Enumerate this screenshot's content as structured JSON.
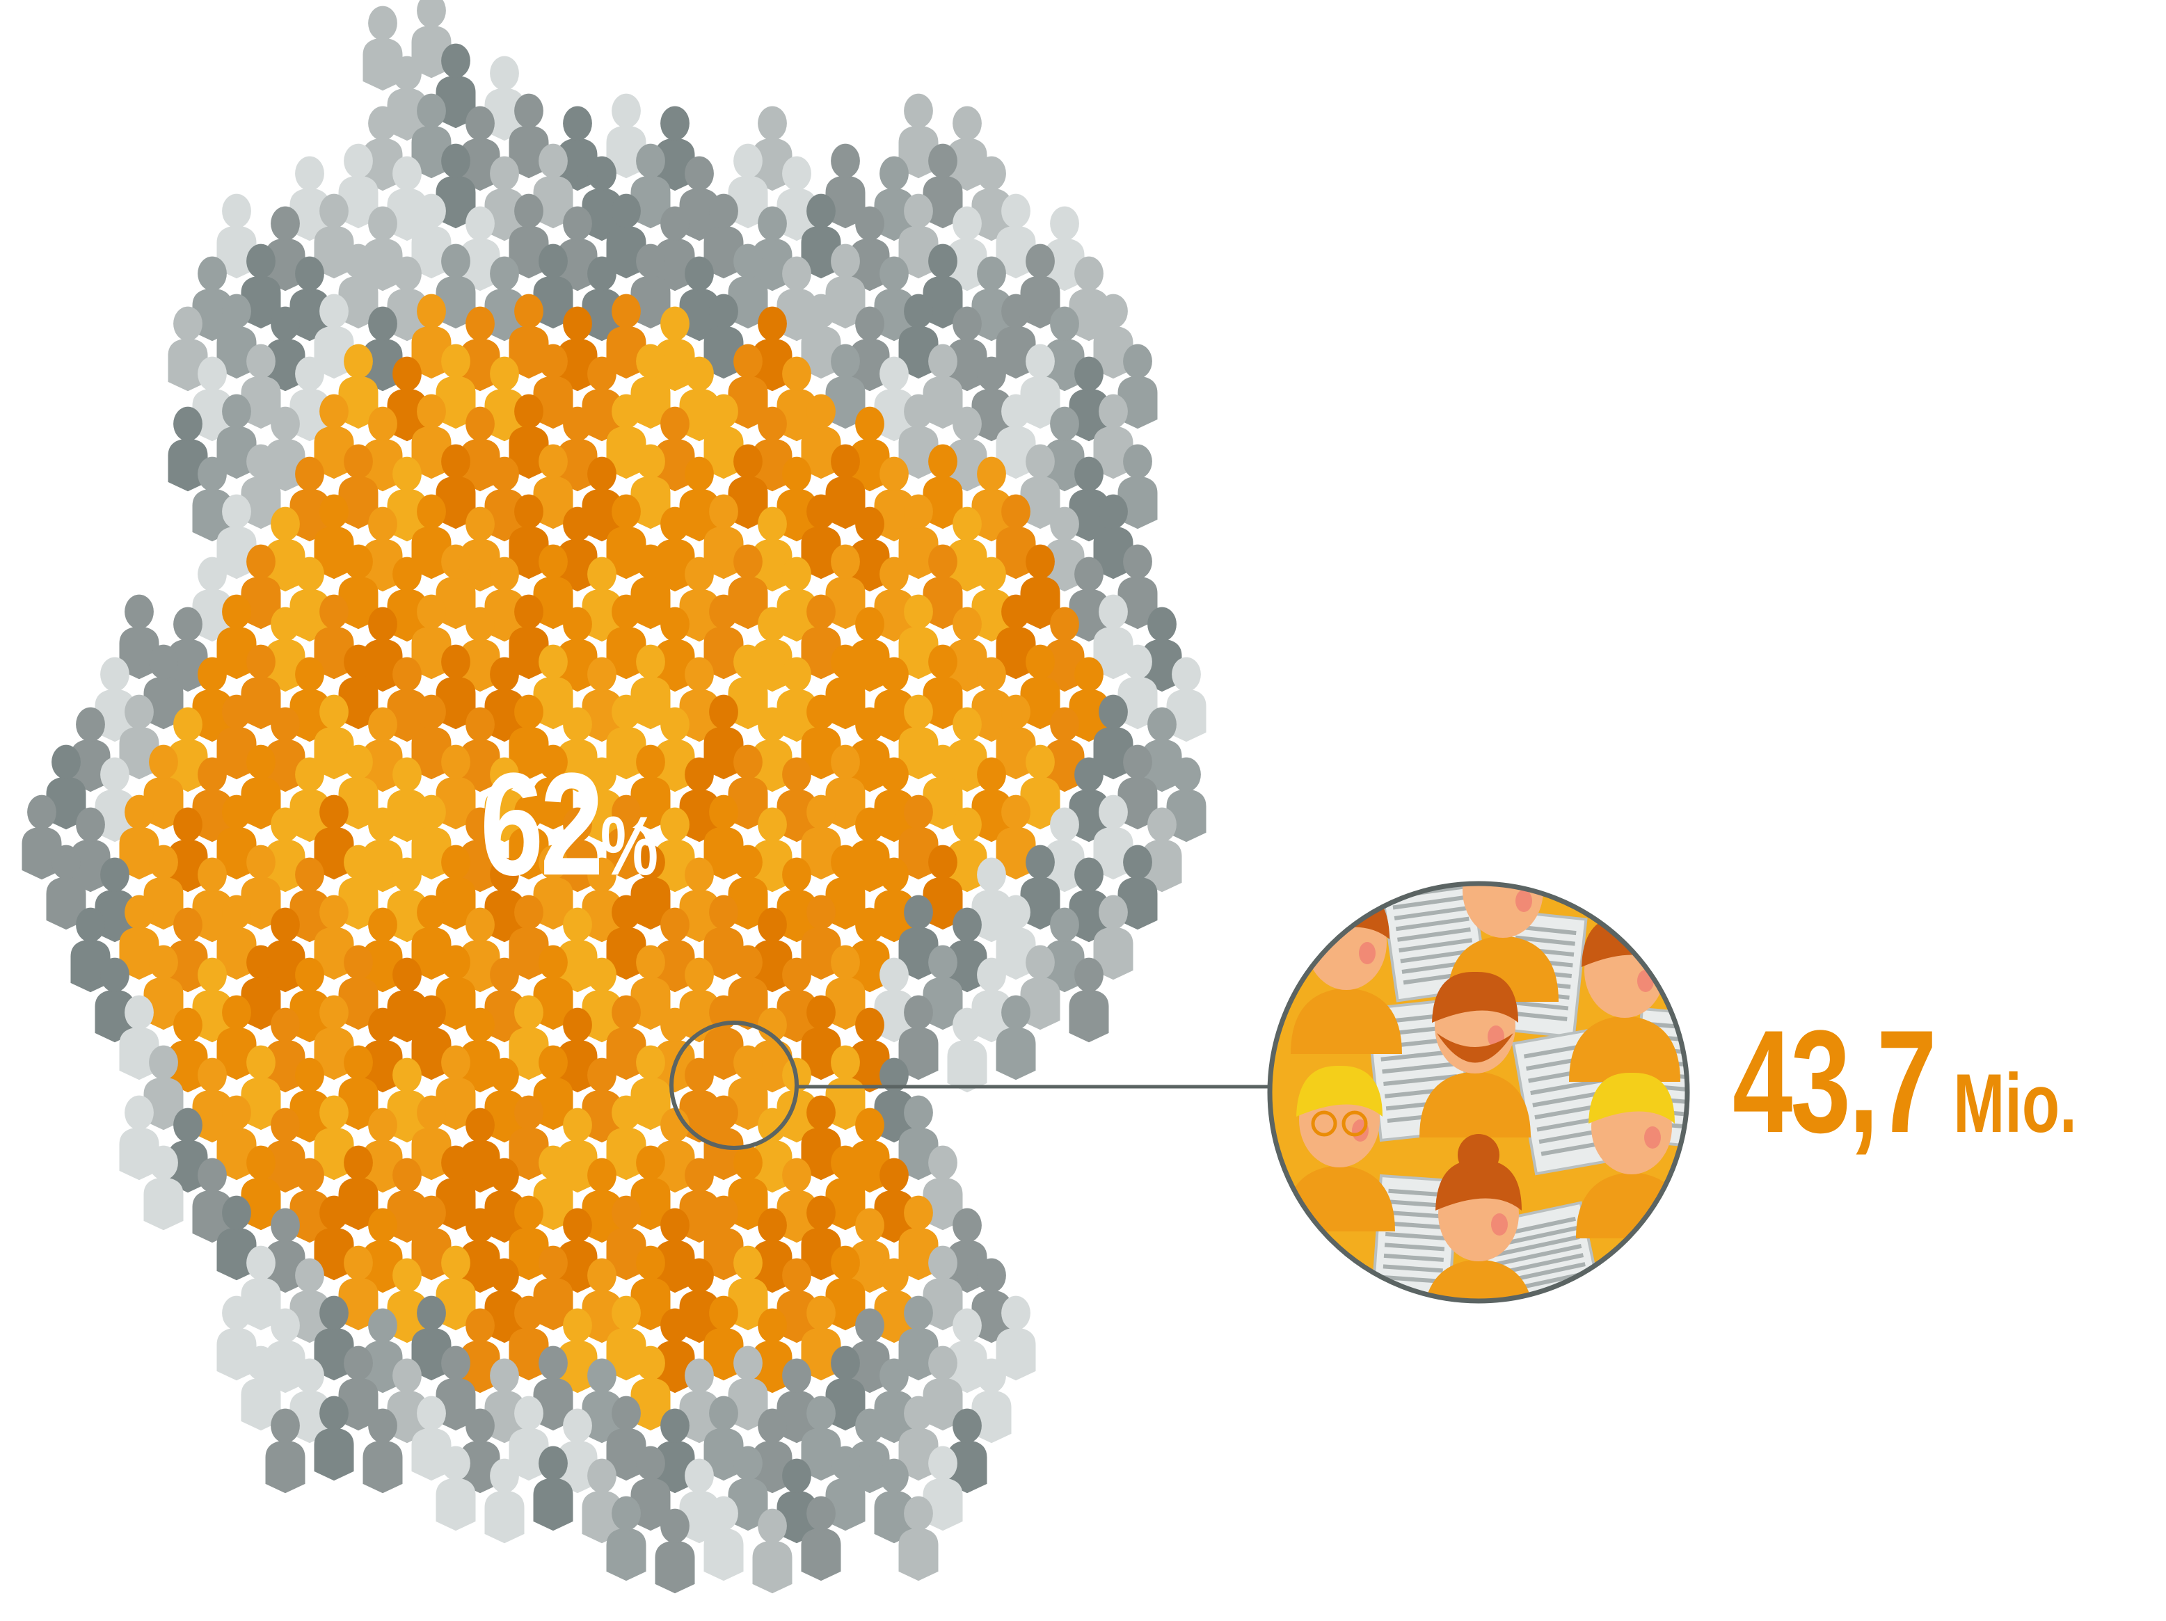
{
  "infographic": {
    "share_value": "62",
    "share_unit": "%",
    "count_value": "43,7",
    "count_unit": "Mio."
  },
  "colors": {
    "oranges": [
      "#e07a00",
      "#ea8c06",
      "#f09c17",
      "#f3ad1e",
      "#e98a0e"
    ],
    "greys": [
      "#7c8787",
      "#98a1a1",
      "#b6bcbc",
      "#d6dbdb",
      "#8d9595"
    ],
    "accent_text": "#ea8c06",
    "connector_line": "#5b6463",
    "skin": "#f6b27e",
    "hair_orange": "#c85a12",
    "hair_yellow": "#f4cf1a"
  },
  "icons": {
    "crowd": "person-silhouette-icon",
    "magnifier": "magnifier-circle-icon",
    "reader": "newspaper-reader-icon"
  }
}
